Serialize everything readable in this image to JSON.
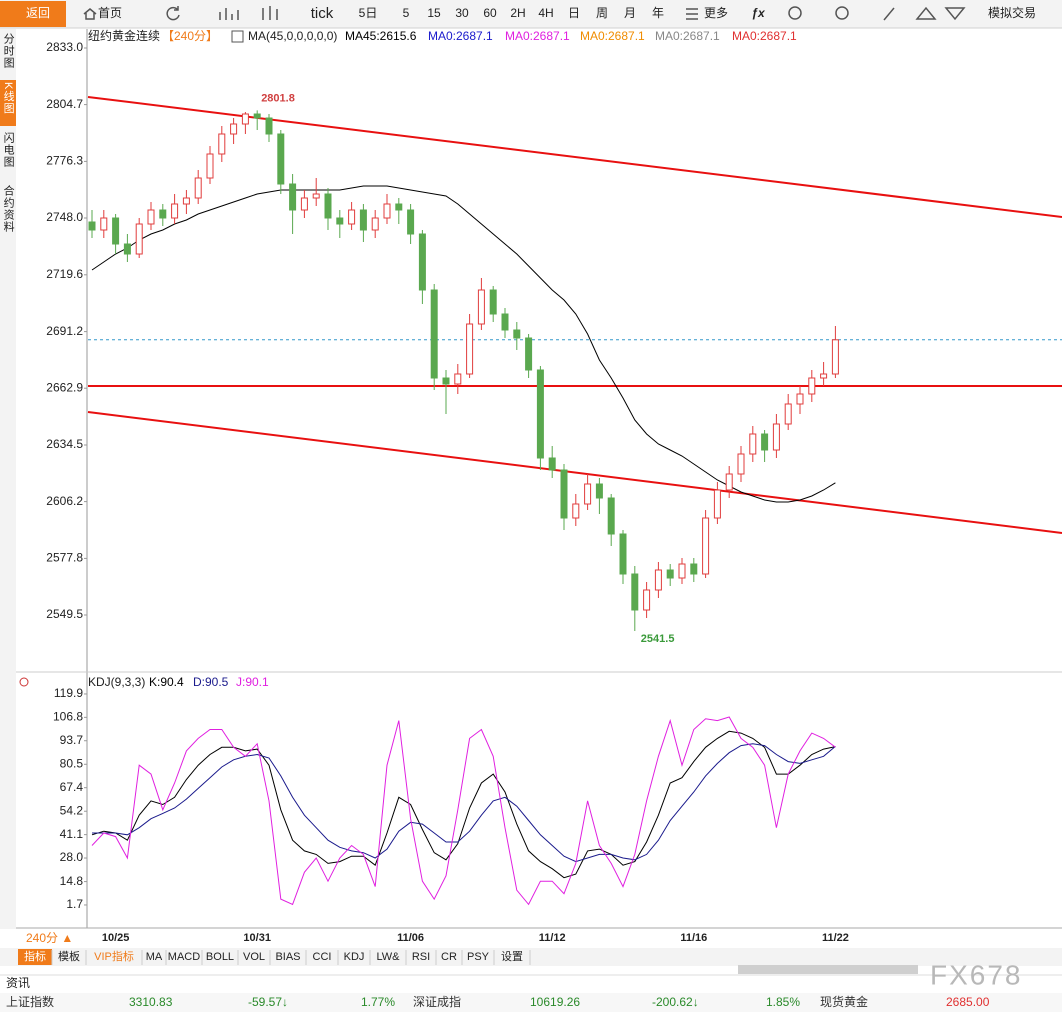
{
  "toolbar": {
    "items": [
      "返回",
      "首页",
      "tick",
      "5日",
      "5",
      "15",
      "30",
      "60",
      "2H",
      "4H",
      "日",
      "周",
      "月",
      "年",
      "更多",
      "模拟交易"
    ]
  },
  "side_tabs": [
    "分时图",
    "K线图",
    "闪电图",
    "合约资料"
  ],
  "chart_data": [
    {
      "type": "candlestick",
      "title": "纽约黄金连续",
      "period": "【240分】",
      "indicator": "MA(45,0,0,0,0,0)",
      "up_color": "#e03c3c",
      "down_color": "#5aa84f",
      "ylim": [
        2521,
        2843
      ],
      "yticks": [
        {
          "value": 2833,
          "label": "2833.0"
        },
        2804.7,
        2776.3,
        {
          "value": 2748,
          "label": "2748.0"
        },
        2719.6,
        2691.2,
        2662.9,
        2634.5,
        2606.2,
        2577.8,
        2549.5
      ],
      "open": [
        2746,
        2742,
        2748,
        2735,
        2730,
        2745,
        2752,
        2748,
        2755,
        2758,
        2768,
        2780,
        2790,
        2795,
        2800,
        2798,
        2790,
        2765,
        2752,
        2758,
        2760,
        2748,
        2745,
        2752,
        2742,
        2748,
        2755,
        2752,
        2740,
        2712,
        2668,
        2665,
        2670,
        2695,
        2712,
        2700,
        2692,
        2688,
        2672,
        2628,
        2622,
        2598,
        2605,
        2615,
        2608,
        2590,
        2570,
        2552,
        2562,
        2572,
        2568,
        2575,
        2570,
        2598,
        2612,
        2620,
        2630,
        2640,
        2632,
        2645,
        2655,
        2660,
        2668,
        2670
      ],
      "high": [
        2752,
        2752,
        2750,
        2740,
        2748,
        2756,
        2755,
        2760,
        2762,
        2772,
        2784,
        2794,
        2798,
        2801,
        2801.8,
        2800,
        2792,
        2770,
        2762,
        2768,
        2763,
        2752,
        2756,
        2755,
        2752,
        2760,
        2758,
        2755,
        2742,
        2715,
        2672,
        2675,
        2700,
        2718,
        2714,
        2703,
        2696,
        2690,
        2674,
        2634,
        2625,
        2610,
        2620,
        2618,
        2610,
        2592,
        2574,
        2566,
        2576,
        2575,
        2578,
        2578,
        2602,
        2616,
        2624,
        2634,
        2644,
        2642,
        2650,
        2660,
        2664,
        2672,
        2676,
        2694
      ],
      "low": [
        2738,
        2738,
        2730,
        2726,
        2728,
        2742,
        2744,
        2745,
        2750,
        2755,
        2765,
        2776,
        2785,
        2790,
        2792,
        2786,
        2760,
        2740,
        2748,
        2754,
        2742,
        2738,
        2742,
        2736,
        2738,
        2745,
        2745,
        2735,
        2705,
        2662,
        2650,
        2660,
        2668,
        2692,
        2696,
        2688,
        2682,
        2668,
        2622,
        2618,
        2592,
        2594,
        2602,
        2600,
        2584,
        2565,
        2541.5,
        2548,
        2558,
        2564,
        2565,
        2566,
        2568,
        2595,
        2608,
        2616,
        2626,
        2626,
        2628,
        2642,
        2650,
        2656,
        2664,
        2668
      ],
      "close": [
        2742,
        2748,
        2735,
        2730,
        2745,
        2752,
        2748,
        2755,
        2758,
        2768,
        2780,
        2790,
        2795,
        2800,
        2798,
        2790,
        2765,
        2752,
        2758,
        2760,
        2748,
        2745,
        2752,
        2742,
        2748,
        2755,
        2752,
        2740,
        2712,
        2668,
        2665,
        2670,
        2695,
        2712,
        2700,
        2692,
        2688,
        2672,
        2628,
        2622,
        2598,
        2605,
        2615,
        2608,
        2590,
        2570,
        2552,
        2562,
        2572,
        2568,
        2575,
        2570,
        2598,
        2612,
        2620,
        2630,
        2640,
        2632,
        2645,
        2655,
        2660,
        2668,
        2670,
        2687.1
      ],
      "series": [
        {
          "name": "MA45:2615.6",
          "color": "#000000",
          "values": [
            2722,
            2726,
            2730,
            2733,
            2737,
            2740,
            2742,
            2745,
            2747,
            2750,
            2752,
            2754,
            2756,
            2758,
            2760,
            2761,
            2762,
            2762,
            2762,
            2762,
            2762,
            2762,
            2763,
            2764,
            2764,
            2764,
            2763,
            2762,
            2761,
            2760,
            2759,
            2755,
            2750,
            2745,
            2740,
            2735,
            2730,
            2724,
            2718,
            2712,
            2707,
            2700,
            2690,
            2677,
            2668,
            2658,
            2647,
            2640,
            2635,
            2632,
            2629,
            2625,
            2621,
            2617,
            2614,
            2611,
            2609,
            2607,
            2606,
            2606,
            2607,
            2609,
            2612,
            2615.6
          ]
        }
      ],
      "extra_legend": [
        {
          "text": "MA0:2687.1",
          "color": "#1a1acc"
        },
        {
          "text": "MA0:2687.1",
          "color": "#e020e0"
        },
        {
          "text": "MA0:2687.1",
          "color": "#f08c00"
        },
        {
          "text": "MA0:2687.1",
          "color": "#888888"
        },
        {
          "text": "MA0:2687.1",
          "color": "#e03030"
        }
      ],
      "trend_lines": [
        {
          "color": "#e81010",
          "from": 2808.5,
          "to": 2748.5
        },
        {
          "color": "#e81010",
          "from": 2664,
          "to": 2664
        },
        {
          "color": "#e81010",
          "from": 2651,
          "to": 2590.5
        }
      ],
      "price_line_color": "#3399cc"
    },
    {
      "type": "line",
      "title": "KDJ(9,3,3)",
      "ylim": [
        -11.2,
        132.2
      ],
      "yticks": [
        119.9,
        106.8,
        93.7,
        80.5,
        67.4,
        54.2,
        41.1,
        {
          "value": 28,
          "label": "28.0"
        },
        14.8,
        1.7
      ],
      "categories": [
        null,
        null,
        "10/25",
        null,
        null,
        null,
        null,
        null,
        null,
        null,
        null,
        null,
        null,
        null,
        "10/31",
        null,
        null,
        null,
        null,
        null,
        null,
        null,
        null,
        null,
        null,
        null,
        null,
        "11/06",
        null,
        null,
        null,
        null,
        null,
        null,
        null,
        null,
        null,
        null,
        null,
        "11/12",
        null,
        null,
        null,
        null,
        null,
        null,
        null,
        null,
        null,
        null,
        null,
        "11/16",
        null,
        null,
        null,
        null,
        null,
        null,
        null,
        null,
        null,
        null,
        null,
        "11/22"
      ],
      "series": [
        {
          "name": "K:90.4",
          "color": "#000000",
          "values": [
            41,
            43,
            42,
            38,
            52,
            60,
            58,
            62,
            72,
            80,
            86,
            90,
            90,
            88,
            89,
            80,
            55,
            38,
            32,
            30,
            25,
            26,
            29,
            29,
            24,
            42,
            62,
            58,
            44,
            31,
            27,
            36,
            56,
            70,
            75,
            65,
            47,
            32,
            26,
            22,
            17,
            19,
            32,
            33,
            30,
            24,
            26,
            37,
            52,
            70,
            73,
            82,
            90,
            95,
            99,
            98,
            95,
            90,
            75,
            75,
            80,
            86,
            89,
            90.4
          ]
        },
        {
          "name": "D:90.5",
          "color": "#1a1a8c",
          "values": [
            42,
            42,
            42,
            41,
            45,
            50,
            53,
            56,
            61,
            67,
            73,
            79,
            83,
            85,
            86,
            84,
            74,
            62,
            52,
            45,
            38,
            34,
            32,
            31,
            28,
            33,
            43,
            48,
            47,
            42,
            37,
            37,
            43,
            52,
            60,
            62,
            57,
            49,
            41,
            35,
            29,
            26,
            28,
            30,
            30,
            28,
            27,
            30,
            38,
            49,
            57,
            65,
            74,
            81,
            87,
            91,
            92,
            91,
            86,
            82,
            81,
            83,
            85,
            90.5
          ]
        },
        {
          "name": "J:90.1",
          "color": "#e020e0",
          "values": [
            35,
            42,
            40,
            28,
            80,
            75,
            55,
            70,
            88,
            95,
            100,
            100,
            90,
            85,
            92,
            60,
            5,
            2,
            20,
            28,
            15,
            28,
            35,
            30,
            12,
            80,
            105,
            50,
            15,
            5,
            18,
            55,
            95,
            100,
            85,
            45,
            10,
            2,
            15,
            15,
            8,
            25,
            60,
            35,
            25,
            12,
            30,
            60,
            85,
            105,
            80,
            100,
            106,
            105,
            107,
            95,
            90,
            80,
            45,
            75,
            88,
            98,
            95,
            90.1
          ]
        }
      ]
    }
  ],
  "bottom": {
    "period": "240分 ▲",
    "tabs": [
      "指标",
      "模板",
      "VIP指标",
      "MA",
      "MACD",
      "BOLL",
      "VOL",
      "BIAS",
      "CCI",
      "KDJ",
      "LW&",
      "RSI",
      "CR",
      "PSY",
      "设置"
    ],
    "news": "资讯",
    "ticker": [
      {
        "text": "上证指数",
        "color": "#333333"
      },
      {
        "text": "3310.83",
        "color": "#2a8a2a"
      },
      {
        "text": "-59.57↓",
        "color": "#2a8a2a"
      },
      {
        "text": "1.77%",
        "color": "#2a8a2a"
      },
      {
        "text": "深证成指",
        "color": "#333333"
      },
      {
        "text": "10619.26",
        "color": "#2a8a2a"
      },
      {
        "text": "-200.62↓",
        "color": "#2a8a2a"
      },
      {
        "text": "1.85%",
        "color": "#2a8a2a"
      },
      {
        "text": "现货黄金",
        "color": "#333333"
      },
      {
        "text": "2685.00",
        "color": "#e03030"
      }
    ],
    "watermark": "FX678"
  }
}
